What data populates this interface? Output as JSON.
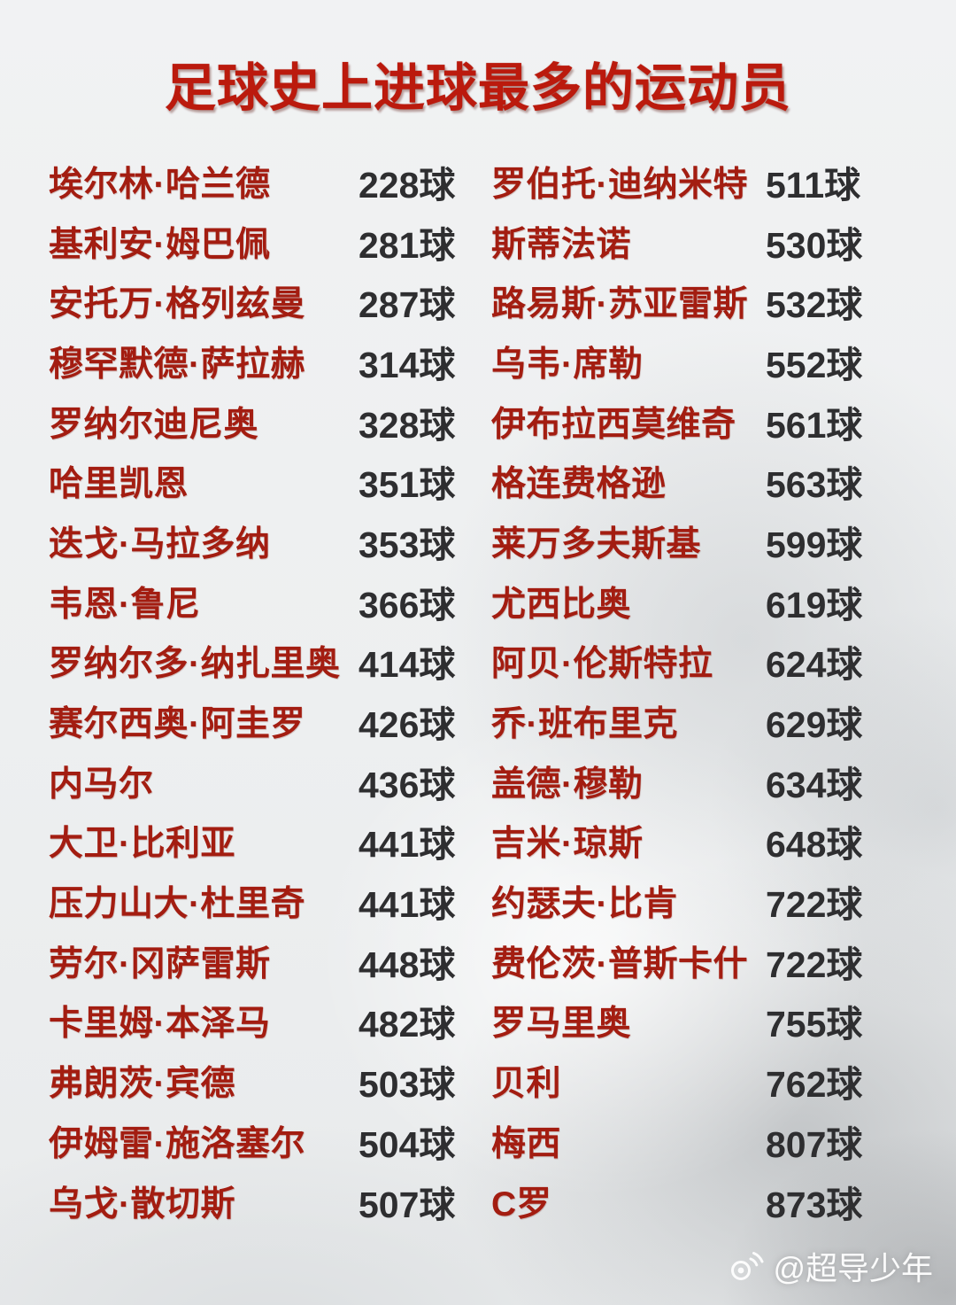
{
  "chart_data": {
    "type": "table",
    "title": "足球史上进球最多的运动员",
    "unit_suffix": "球",
    "layout": "two-column list, names left-aligned red, goal counts dark gray at fixed column offset",
    "left_rows": [
      {
        "player": "埃尔林·哈兰德",
        "goals": 228
      },
      {
        "player": "基利安·姆巴佩",
        "goals": 281
      },
      {
        "player": "安托万·格列兹曼",
        "goals": 287
      },
      {
        "player": "穆罕默德·萨拉赫",
        "goals": 314
      },
      {
        "player": "罗纳尔迪尼奥",
        "goals": 328
      },
      {
        "player": "哈里凯恩",
        "goals": 351
      },
      {
        "player": "迭戈·马拉多纳",
        "goals": 353
      },
      {
        "player": "韦恩·鲁尼",
        "goals": 366
      },
      {
        "player": "罗纳尔多·纳扎里奥",
        "goals": 414
      },
      {
        "player": "赛尔西奥·阿圭罗",
        "goals": 426
      },
      {
        "player": "内马尔",
        "goals": 436
      },
      {
        "player": "大卫·比利亚",
        "goals": 441
      },
      {
        "player": "压力山大·杜里奇",
        "goals": 441
      },
      {
        "player": "劳尔·冈萨雷斯",
        "goals": 448
      },
      {
        "player": "卡里姆·本泽马",
        "goals": 482
      },
      {
        "player": "弗朗茨·宾德",
        "goals": 503
      },
      {
        "player": "伊姆雷·施洛塞尔",
        "goals": 504
      },
      {
        "player": "乌戈·散切斯",
        "goals": 507
      }
    ],
    "right_rows": [
      {
        "player": "罗伯托·迪纳米特",
        "goals": 511
      },
      {
        "player": "斯蒂法诺",
        "goals": 530
      },
      {
        "player": "路易斯·苏亚雷斯",
        "goals": 532
      },
      {
        "player": "乌韦·席勒",
        "goals": 552
      },
      {
        "player": "伊布拉西莫维奇",
        "goals": 561
      },
      {
        "player": "格连费格逊",
        "goals": 563
      },
      {
        "player": "莱万多夫斯基",
        "goals": 599
      },
      {
        "player": "尤西比奥",
        "goals": 619
      },
      {
        "player": "阿贝·伦斯特拉",
        "goals": 624
      },
      {
        "player": "乔·班布里克",
        "goals": 629
      },
      {
        "player": "盖德·穆勒",
        "goals": 634
      },
      {
        "player": "吉米·琼斯",
        "goals": 648
      },
      {
        "player": "约瑟夫·比肯",
        "goals": 722
      },
      {
        "player": "费伦茨·普斯卡什",
        "goals": 722
      },
      {
        "player": "罗马里奥",
        "goals": 755
      },
      {
        "player": "贝利",
        "goals": 762
      },
      {
        "player": "梅西",
        "goals": 807
      },
      {
        "player": "C罗",
        "goals": 873
      }
    ]
  },
  "watermark": {
    "icon": "weibo-icon",
    "text": "@超导少年"
  },
  "colors": {
    "title_red": "#bb1a0d",
    "name_red": "#a31d11",
    "goal_dark": "#2e2e30",
    "background": "#edeff0",
    "watermark_white": "#ffffff"
  }
}
